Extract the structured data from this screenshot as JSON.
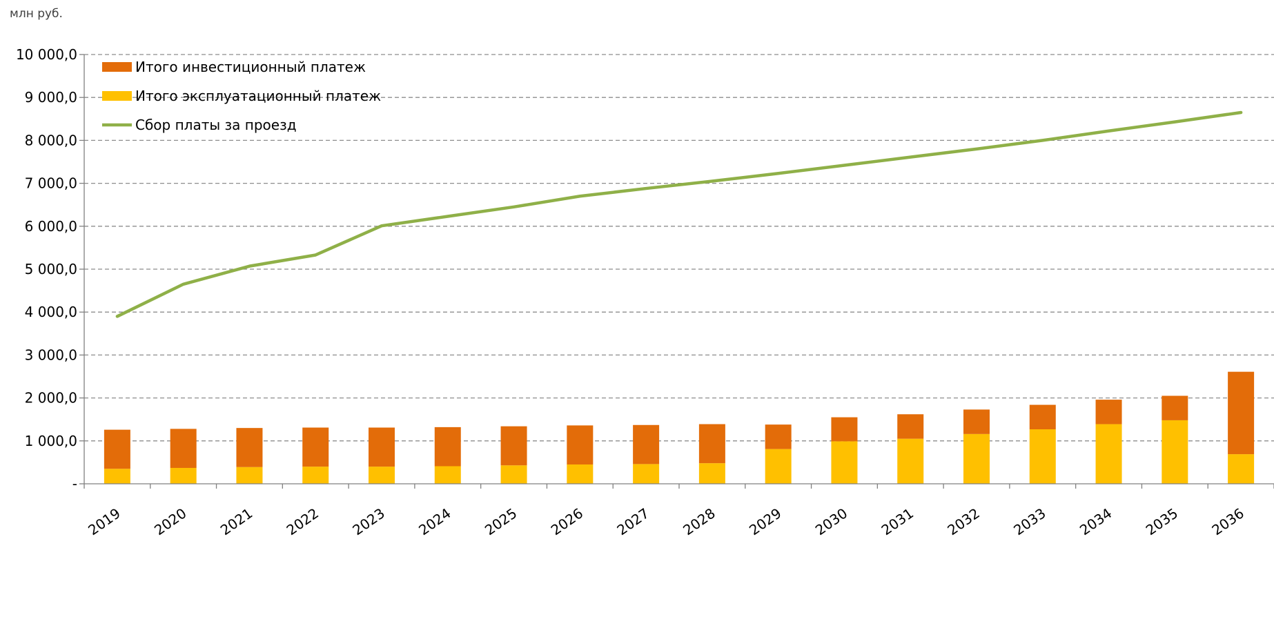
{
  "unit_label": "млн руб.",
  "chart_data": {
    "type": "bar",
    "stacked": true,
    "categories": [
      "2019",
      "2020",
      "2021",
      "2022",
      "2023",
      "2024",
      "2025",
      "2026",
      "2027",
      "2028",
      "2029",
      "2030",
      "2031",
      "2032",
      "2033",
      "2034",
      "2035",
      "2036"
    ],
    "y_ticks": [
      "-",
      "1 000,0",
      "2 000,0",
      "3 000,0",
      "4 000,0",
      "5 000,0",
      "6 000,0",
      "7 000,0",
      "8 000,0",
      "9 000,0",
      "10 000,0"
    ],
    "ylim": [
      0,
      10000
    ],
    "grid": "horizontal-dashed",
    "legend_position": "top-left",
    "series": [
      {
        "name": "Итого эксплуатационный платеж",
        "kind": "bar",
        "color": "#FFC000",
        "values": [
          350,
          370,
          390,
          400,
          400,
          410,
          430,
          450,
          460,
          480,
          810,
          990,
          1050,
          1160,
          1270,
          1390,
          1480,
          690
        ]
      },
      {
        "name": "Итого инвестиционный платеж",
        "kind": "bar",
        "color": "#E36C09",
        "values": [
          910,
          910,
          910,
          910,
          910,
          910,
          910,
          910,
          910,
          910,
          570,
          560,
          570,
          570,
          570,
          570,
          570,
          1920
        ]
      },
      {
        "name": "Сбор платы за проезд",
        "kind": "line",
        "color": "#8FB048",
        "values": [
          3900,
          4650,
          5070,
          5330,
          6010,
          6230,
          6450,
          6700,
          6880,
          7050,
          7230,
          7420,
          7610,
          7800,
          8000,
          8220,
          8430,
          8650
        ]
      }
    ],
    "legend_order": [
      1,
      0,
      2
    ]
  }
}
